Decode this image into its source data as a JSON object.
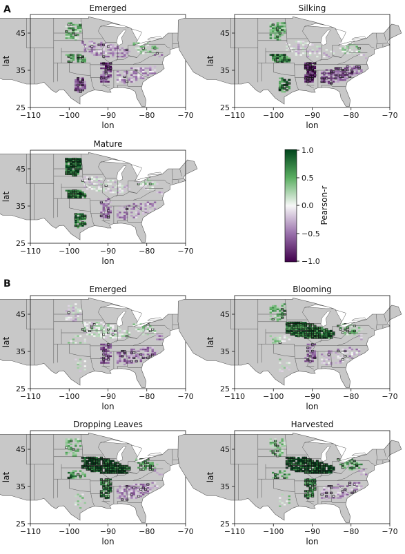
{
  "figure": {
    "panel_labels": [
      "A",
      "B"
    ]
  },
  "colorbar": {
    "label": "Pearson-r",
    "ticks": [
      "1.0",
      "0.5",
      "0.0",
      "−0.5",
      "−1.0"
    ],
    "colors": {
      "high": "#00441b",
      "mid": "#f7f7f7",
      "low": "#40004b"
    }
  },
  "chart_data": [
    {
      "type": "heatmap",
      "title": "Emerged",
      "xlabel": "lon",
      "ylabel": "lat",
      "xlim": [
        -110,
        -70
      ],
      "ylim": [
        25,
        50
      ],
      "xticks": [
        "−110",
        "−100",
        "−90",
        "−80",
        "−70"
      ],
      "yticks": [
        "45",
        "35",
        "25"
      ],
      "pattern": "mixed-purple"
    },
    {
      "type": "heatmap",
      "title": "Silking",
      "xlabel": "lon",
      "ylabel": "lat",
      "xlim": [
        -110,
        -70
      ],
      "ylim": [
        25,
        50
      ],
      "xticks": [
        "−110",
        "−100",
        "−90",
        "−80",
        "−70"
      ],
      "yticks": [
        "45",
        "35",
        "25"
      ],
      "pattern": "split"
    },
    {
      "type": "heatmap",
      "title": "Mature",
      "xlabel": "lon",
      "ylabel": "lat",
      "xlim": [
        -110,
        -70
      ],
      "ylim": [
        25,
        50
      ],
      "xticks": [
        "−110",
        "−100",
        "−90",
        "−80",
        "−70"
      ],
      "yticks": [
        "45",
        "35",
        "25"
      ],
      "pattern": "green-west"
    },
    {
      "type": "heatmap",
      "title": "Emerged",
      "xlabel": "lon",
      "ylabel": "lat",
      "xlim": [
        -110,
        -70
      ],
      "ylim": [
        25,
        50
      ],
      "xticks": [
        "−110",
        "−100",
        "−90",
        "−80",
        "−70"
      ],
      "yticks": [
        "45",
        "35",
        "25"
      ],
      "pattern": "soy-emerged"
    },
    {
      "type": "heatmap",
      "title": "Blooming",
      "xlabel": "lon",
      "ylabel": "lat",
      "xlim": [
        -110,
        -70
      ],
      "ylim": [
        25,
        50
      ],
      "xticks": [
        "−110",
        "−100",
        "−90",
        "−80",
        "−70"
      ],
      "yticks": [
        "45",
        "35",
        "25"
      ],
      "pattern": "green-belt"
    },
    {
      "type": "heatmap",
      "title": "Dropping Leaves",
      "xlabel": "lon",
      "ylabel": "lat",
      "xlim": [
        -110,
        -70
      ],
      "ylim": [
        25,
        50
      ],
      "xticks": [
        "−110",
        "−100",
        "−90",
        "−80",
        "−70"
      ],
      "yticks": [
        "45",
        "35",
        "25"
      ],
      "pattern": "strong-green"
    },
    {
      "type": "heatmap",
      "title": "Harvested",
      "xlabel": "lon",
      "ylabel": "lat",
      "xlim": [
        -110,
        -70
      ],
      "ylim": [
        25,
        50
      ],
      "xticks": [
        "−110",
        "−100",
        "−90",
        "−80",
        "−70"
      ],
      "yticks": [
        "45",
        "35",
        "25"
      ],
      "pattern": "strong-green"
    }
  ]
}
